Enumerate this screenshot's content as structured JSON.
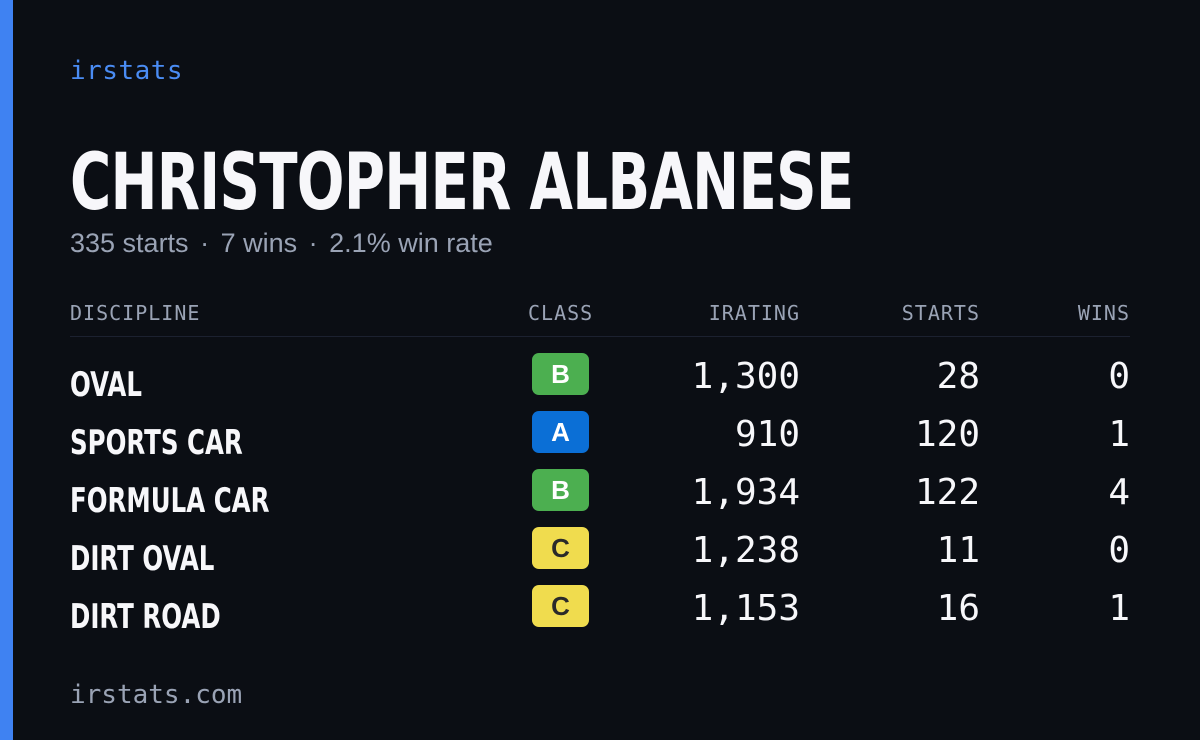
{
  "brand": "irstats",
  "player": {
    "name": "CHRISTOPHER ALBANESE",
    "starts_text": "335 starts",
    "wins_text": "7 wins",
    "win_rate_text": "2.1% win rate",
    "separator": "·"
  },
  "table": {
    "headers": {
      "discipline": "DISCIPLINE",
      "class": "CLASS",
      "irating": "IRATING",
      "starts": "STARTS",
      "wins": "WINS"
    },
    "rows": [
      {
        "discipline": "OVAL",
        "class": "B",
        "irating": "1,300",
        "starts": "28",
        "wins": "0"
      },
      {
        "discipline": "SPORTS CAR",
        "class": "A",
        "irating": "910",
        "starts": "120",
        "wins": "1"
      },
      {
        "discipline": "FORMULA CAR",
        "class": "B",
        "irating": "1,934",
        "starts": "122",
        "wins": "4"
      },
      {
        "discipline": "DIRT OVAL",
        "class": "C",
        "irating": "1,238",
        "starts": "11",
        "wins": "0"
      },
      {
        "discipline": "DIRT ROAD",
        "class": "C",
        "irating": "1,153",
        "starts": "16",
        "wins": "1"
      }
    ]
  },
  "class_colors": {
    "A": {
      "bg": "#0b6fd6",
      "fg": "#ffffff"
    },
    "B": {
      "bg": "#4caf50",
      "fg": "#ffffff"
    },
    "C": {
      "bg": "#f0dc4e",
      "fg": "#2a2a2a"
    }
  },
  "colors": {
    "background": "#0b0e14",
    "accent": "#3f82f2",
    "muted_text": "#9aa3b5"
  },
  "footer": {
    "url": "irstats.com"
  }
}
